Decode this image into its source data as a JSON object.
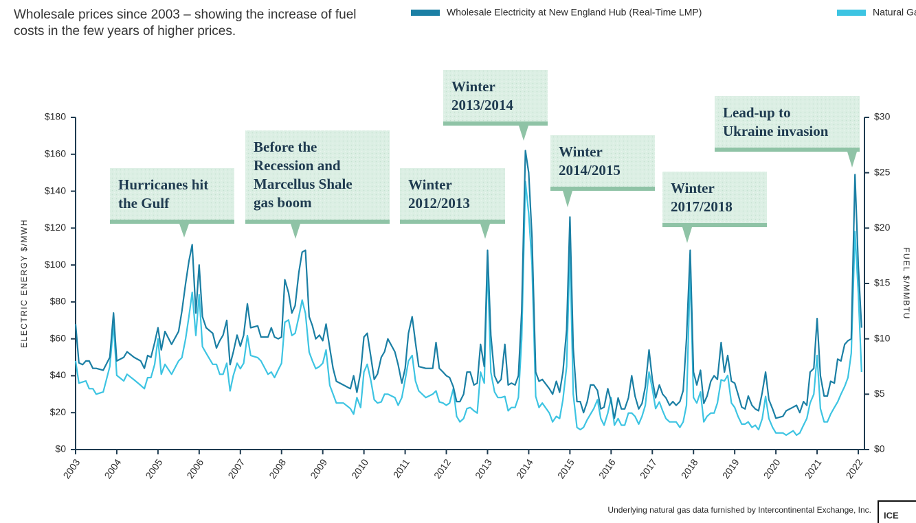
{
  "chart_data": {
    "type": "line",
    "title": "Wholesale prices since 2003 – showing the increase of fuel costs in the few years of higher prices.",
    "y_label": "ELECTRIC ENERGY $/MWH",
    "y2_label": "FUEL $/MMBTU",
    "footnote": "Underlying natural gas data furnished by Intercontinental Exchange, Inc.",
    "logo": "ICE",
    "xlim": [
      2003,
      2022.15
    ],
    "xticks": [
      2003,
      2004,
      2005,
      2006,
      2007,
      2008,
      2009,
      2010,
      2011,
      2012,
      2013,
      2014,
      2015,
      2016,
      2017,
      2018,
      2019,
      2020,
      2021,
      2022
    ],
    "ylim": [
      0,
      180
    ],
    "yticks": [
      {
        "value": 0,
        "label": "$0"
      },
      {
        "value": 20,
        "label": "$20"
      },
      {
        "value": 40,
        "label": "$40"
      },
      {
        "value": 60,
        "label": "$60"
      },
      {
        "value": 80,
        "label": "$80"
      },
      {
        "value": 100,
        "label": "$100"
      },
      {
        "value": 120,
        "label": "$120"
      },
      {
        "value": 140,
        "label": "$140"
      },
      {
        "value": 160,
        "label": "$160"
      },
      {
        "value": 180,
        "label": "$180"
      }
    ],
    "y2lim": [
      0,
      30
    ],
    "y2ticks": [
      {
        "value": 0,
        "label": "$0"
      },
      {
        "value": 5,
        "label": "$5"
      },
      {
        "value": 10,
        "label": "$10"
      },
      {
        "value": 15,
        "label": "$15"
      },
      {
        "value": 20,
        "label": "$20"
      },
      {
        "value": 25,
        "label": "$25"
      },
      {
        "value": 30,
        "label": "$30"
      }
    ],
    "grid": false,
    "legend": "top",
    "annotations": [
      [
        "Hurricanes hit",
        "the Gulf"
      ],
      [
        "Before the",
        "Recession and",
        "Marcellus Shale",
        "gas boom"
      ],
      [
        "Winter",
        "2012/2013"
      ],
      [
        "Winter",
        "2013/2014"
      ],
      [
        "Winter",
        "2014/2015"
      ],
      [
        "Winter",
        "2017/2018"
      ],
      [
        "Lead-up to",
        "Ukraine invasion"
      ]
    ],
    "x": [
      2003.0,
      2003.08,
      2003.17,
      2003.25,
      2003.33,
      2003.42,
      2003.5,
      2003.67,
      2003.83,
      2003.92,
      2004.0,
      2004.17,
      2004.25,
      2004.42,
      2004.58,
      2004.67,
      2004.75,
      2004.83,
      2004.92,
      2005.0,
      2005.08,
      2005.17,
      2005.33,
      2005.5,
      2005.58,
      2005.67,
      2005.75,
      2005.83,
      2005.92,
      2006.0,
      2006.08,
      2006.17,
      2006.33,
      2006.42,
      2006.5,
      2006.58,
      2006.67,
      2006.75,
      2006.83,
      2006.92,
      2007.0,
      2007.08,
      2007.17,
      2007.25,
      2007.42,
      2007.5,
      2007.67,
      2007.75,
      2007.83,
      2007.92,
      2008.0,
      2008.08,
      2008.17,
      2008.25,
      2008.33,
      2008.42,
      2008.5,
      2008.58,
      2008.67,
      2008.75,
      2008.83,
      2008.92,
      2009.0,
      2009.08,
      2009.17,
      2009.25,
      2009.33,
      2009.5,
      2009.67,
      2009.75,
      2009.83,
      2009.92,
      2010.0,
      2010.08,
      2010.17,
      2010.25,
      2010.33,
      2010.42,
      2010.5,
      2010.58,
      2010.75,
      2010.83,
      2010.92,
      2011.0,
      2011.08,
      2011.17,
      2011.25,
      2011.33,
      2011.5,
      2011.67,
      2011.75,
      2011.83,
      2011.92,
      2012.0,
      2012.08,
      2012.17,
      2012.25,
      2012.33,
      2012.42,
      2012.5,
      2012.58,
      2012.67,
      2012.75,
      2012.83,
      2012.92,
      2013.0,
      2013.08,
      2013.17,
      2013.25,
      2013.33,
      2013.42,
      2013.5,
      2013.58,
      2013.67,
      2013.75,
      2013.83,
      2013.92,
      2014.0,
      2014.08,
      2014.17,
      2014.25,
      2014.33,
      2014.5,
      2014.58,
      2014.67,
      2014.75,
      2014.83,
      2014.92,
      2015.0,
      2015.08,
      2015.17,
      2015.25,
      2015.33,
      2015.42,
      2015.5,
      2015.58,
      2015.67,
      2015.75,
      2015.83,
      2015.92,
      2016.0,
      2016.08,
      2016.17,
      2016.25,
      2016.33,
      2016.42,
      2016.5,
      2016.58,
      2016.67,
      2016.75,
      2016.83,
      2016.92,
      2017.0,
      2017.08,
      2017.17,
      2017.25,
      2017.33,
      2017.42,
      2017.5,
      2017.58,
      2017.67,
      2017.75,
      2017.83,
      2017.92,
      2018.0,
      2018.08,
      2018.17,
      2018.25,
      2018.33,
      2018.42,
      2018.5,
      2018.58,
      2018.67,
      2018.75,
      2018.83,
      2018.92,
      2019.0,
      2019.08,
      2019.17,
      2019.25,
      2019.33,
      2019.42,
      2019.5,
      2019.58,
      2019.67,
      2019.75,
      2019.83,
      2019.92,
      2020.0,
      2020.17,
      2020.25,
      2020.42,
      2020.5,
      2020.58,
      2020.67,
      2020.75,
      2020.83,
      2020.92,
      2021.0,
      2021.08,
      2021.17,
      2021.25,
      2021.33,
      2021.42,
      2021.5,
      2021.58,
      2021.67,
      2021.75,
      2021.83,
      2021.92,
      2022.0,
      2022.08
    ],
    "series": [
      {
        "name": "Wholesale Electricity at New England Hub (Real-Time LMP)",
        "color": "#1b7fa4",
        "axis": "y",
        "values": [
          68,
          47,
          46,
          48,
          48,
          44,
          44,
          43,
          50,
          74,
          48,
          50,
          53,
          50,
          48,
          44,
          51,
          50,
          58,
          66,
          54,
          64,
          57,
          64,
          75,
          90,
          102,
          111,
          74,
          100,
          72,
          66,
          63,
          55,
          59,
          62,
          70,
          46,
          53,
          62,
          56,
          62,
          79,
          66,
          67,
          61,
          61,
          66,
          61,
          60,
          61,
          92,
          85,
          74,
          78,
          96,
          107,
          108,
          72,
          67,
          60,
          62,
          59,
          68,
          55,
          44,
          37,
          35,
          33,
          40,
          31,
          42,
          61,
          63,
          50,
          38,
          41,
          50,
          53,
          60,
          53,
          46,
          36,
          44,
          63,
          72,
          58,
          45,
          44,
          44,
          58,
          44,
          42,
          40,
          39,
          34,
          26,
          26,
          30,
          42,
          42,
          35,
          36,
          57,
          45,
          108,
          62,
          40,
          36,
          38,
          57,
          35,
          36,
          35,
          40,
          75,
          162,
          150,
          115,
          42,
          37,
          38,
          33,
          30,
          37,
          31,
          42,
          65,
          126,
          55,
          26,
          26,
          20,
          26,
          35,
          35,
          32,
          22,
          23,
          33,
          26,
          17,
          28,
          22,
          22,
          28,
          40,
          29,
          22,
          25,
          34,
          54,
          38,
          28,
          35,
          30,
          28,
          24,
          26,
          24,
          26,
          32,
          60,
          108,
          42,
          35,
          43,
          25,
          29,
          37,
          40,
          38,
          58,
          42,
          51,
          37,
          36,
          30,
          23,
          22,
          29,
          24,
          22,
          21,
          31,
          42,
          27,
          22,
          17,
          18,
          21,
          23,
          24,
          20,
          26,
          24,
          42,
          44,
          71,
          40,
          29,
          29,
          37,
          36,
          49,
          48,
          57,
          59,
          60,
          149,
          100,
          66
        ]
      },
      {
        "name": "Natural Gas",
        "color": "#3dc4e2",
        "axis": "y2",
        "values": [
          8.0,
          6.0,
          6.1,
          6.2,
          5.5,
          5.5,
          5.0,
          5.2,
          7.5,
          11.3,
          6.7,
          6.2,
          6.8,
          6.3,
          5.8,
          5.5,
          6.5,
          6.5,
          7.7,
          10,
          6.8,
          7.7,
          6.8,
          8.0,
          8.3,
          10,
          12,
          14.2,
          10.3,
          14,
          9.3,
          8.7,
          7.7,
          7.7,
          6.8,
          6.8,
          7.8,
          5.3,
          6.7,
          7.8,
          7.3,
          7.8,
          10.3,
          8.5,
          8.3,
          8.0,
          6.8,
          7.0,
          6.5,
          7.2,
          7.8,
          11.5,
          11.7,
          10.3,
          10.5,
          12,
          13.5,
          12.3,
          8.8,
          8.0,
          7.3,
          7.5,
          7.8,
          9.0,
          5.8,
          5.0,
          4.2,
          4.2,
          3.7,
          3.2,
          4.7,
          3.8,
          7.0,
          7.7,
          6.2,
          4.5,
          4.2,
          4.3,
          5.0,
          5.0,
          4.7,
          4.0,
          4.7,
          6.3,
          8.0,
          8.5,
          6.2,
          5.3,
          4.7,
          5.0,
          5.3,
          4.3,
          4.2,
          4.0,
          4.2,
          5.5,
          3.0,
          2.5,
          2.8,
          3.7,
          3.8,
          3.5,
          3.3,
          7.0,
          6.0,
          16.7,
          7.0,
          5.2,
          4.7,
          4.7,
          4.8,
          3.5,
          3.8,
          3.8,
          4.7,
          10,
          24.2,
          21.3,
          16.7,
          4.8,
          3.8,
          4.2,
          3.3,
          2.5,
          3.0,
          2.8,
          4.5,
          7.5,
          18.3,
          5.0,
          2.0,
          1.8,
          2.0,
          2.7,
          3.2,
          3.7,
          4.5,
          2.8,
          2.2,
          3.3,
          4.7,
          2.2,
          2.8,
          2.2,
          2.2,
          3.3,
          3.3,
          3.0,
          2.3,
          3.0,
          4.0,
          7.0,
          5.5,
          3.7,
          4.3,
          3.5,
          2.8,
          2.5,
          2.5,
          2.5,
          2.0,
          2.5,
          4.0,
          16.2,
          4.7,
          4.2,
          5.2,
          2.5,
          3.0,
          3.3,
          3.3,
          4.2,
          6.3,
          6.2,
          6.7,
          4.2,
          3.8,
          3.0,
          2.3,
          2.3,
          2.5,
          2.0,
          2.2,
          1.8,
          2.8,
          4.8,
          2.8,
          2.0,
          1.5,
          1.5,
          1.3,
          1.7,
          1.3,
          1.5,
          2.2,
          2.8,
          4.2,
          5.0,
          8.5,
          3.7,
          2.5,
          2.5,
          3.2,
          3.8,
          4.3,
          5.0,
          5.7,
          6.5,
          8.7,
          19.7,
          14.2,
          7.0
        ]
      }
    ]
  }
}
